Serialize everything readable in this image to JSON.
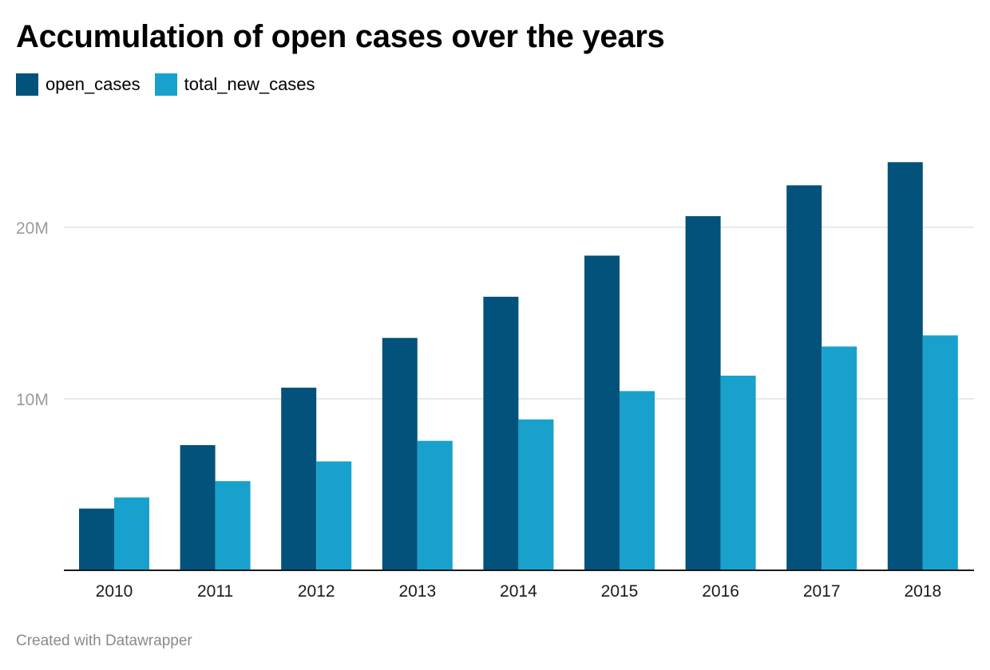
{
  "title": "Accumulation of open cases over the years",
  "footer": "Created with Datawrapper",
  "colors": {
    "open_cases": "#03527b",
    "total_new_cases": "#18a1cd",
    "grid": "#e2e2e2",
    "axis": "#1a1a1a"
  },
  "legend": [
    {
      "label": "open_cases",
      "color": "#03527b"
    },
    {
      "label": "total_new_cases",
      "color": "#18a1cd"
    }
  ],
  "chart_data": {
    "type": "bar",
    "title": "Accumulation of open cases over the years",
    "categories": [
      "2010",
      "2011",
      "2012",
      "2013",
      "2014",
      "2015",
      "2016",
      "2017",
      "2018"
    ],
    "series": [
      {
        "name": "open_cases",
        "values": [
          3.6,
          7.3,
          10.65,
          13.55,
          15.95,
          18.35,
          20.65,
          22.45,
          23.8
        ]
      },
      {
        "name": "total_new_cases",
        "values": [
          4.25,
          5.2,
          6.35,
          7.55,
          8.8,
          10.45,
          11.35,
          13.05,
          13.7
        ]
      }
    ],
    "unit": "M",
    "ylim": [
      0,
      25
    ],
    "yticks": [
      {
        "value": 10,
        "label": "10M"
      },
      {
        "value": 20,
        "label": "20M"
      }
    ],
    "grid": true,
    "legend_position": "top-left"
  }
}
